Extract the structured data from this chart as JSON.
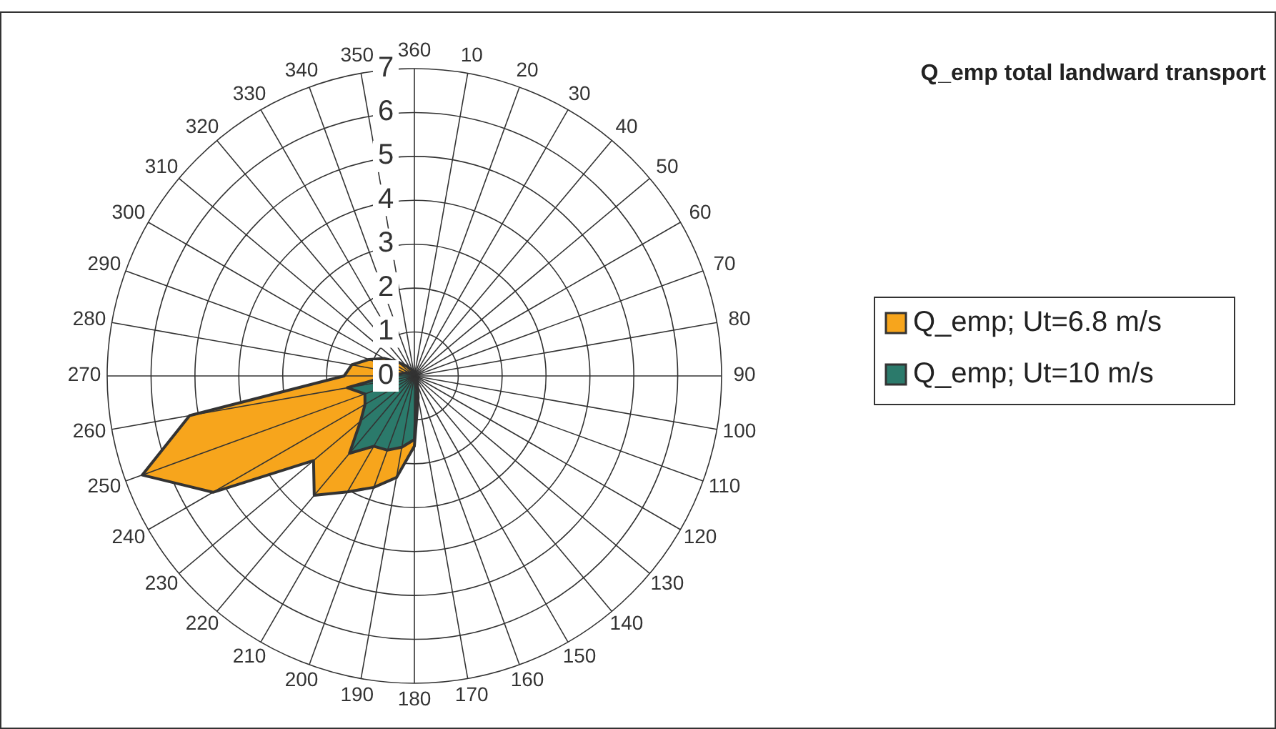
{
  "chart_data": {
    "type": "radar",
    "title": "Q_emp total landward transport",
    "categories": [
      "360",
      "10",
      "20",
      "30",
      "40",
      "50",
      "60",
      "70",
      "80",
      "90",
      "100",
      "110",
      "120",
      "130",
      "140",
      "150",
      "160",
      "170",
      "180",
      "190",
      "200",
      "210",
      "220",
      "230",
      "240",
      "250",
      "260",
      "270",
      "280",
      "290",
      "300",
      "310",
      "320",
      "330",
      "340",
      "350"
    ],
    "ylim": [
      0,
      7
    ],
    "yticks": [
      0,
      1,
      2,
      3,
      4,
      5,
      6,
      7
    ],
    "grid": true,
    "legend": "right",
    "marker": "none",
    "series": [
      {
        "name": "Q_emp; Ut=6.8 m/s",
        "color": "#f7a51c",
        "values": [
          0.1,
          0.05,
          0.05,
          0.05,
          0.05,
          0.05,
          0.05,
          0.05,
          0.05,
          0.05,
          0.05,
          0.1,
          0.1,
          0.1,
          0.1,
          0.15,
          0.2,
          0.5,
          1.6,
          2.35,
          2.7,
          3.05,
          3.55,
          3.0,
          5.3,
          6.6,
          5.2,
          1.6,
          1.45,
          1.1,
          0.8,
          0.5,
          0.3,
          0.2,
          0.15,
          0.1
        ]
      },
      {
        "name": "Q_emp; Ut=10 m/s",
        "color": "#2b7a6b",
        "values": [
          0.1,
          0.05,
          0.05,
          0.05,
          0.05,
          0.05,
          0.05,
          0.05,
          0.05,
          0.05,
          0.05,
          0.05,
          0.05,
          0.05,
          0.05,
          0.05,
          0.05,
          0.3,
          1.45,
          1.65,
          1.8,
          1.85,
          2.3,
          1.6,
          1.3,
          1.2,
          1.55,
          0.6,
          0.3,
          0.2,
          0.15,
          0.1,
          0.1,
          0.1,
          0.1,
          0.1
        ]
      }
    ]
  }
}
